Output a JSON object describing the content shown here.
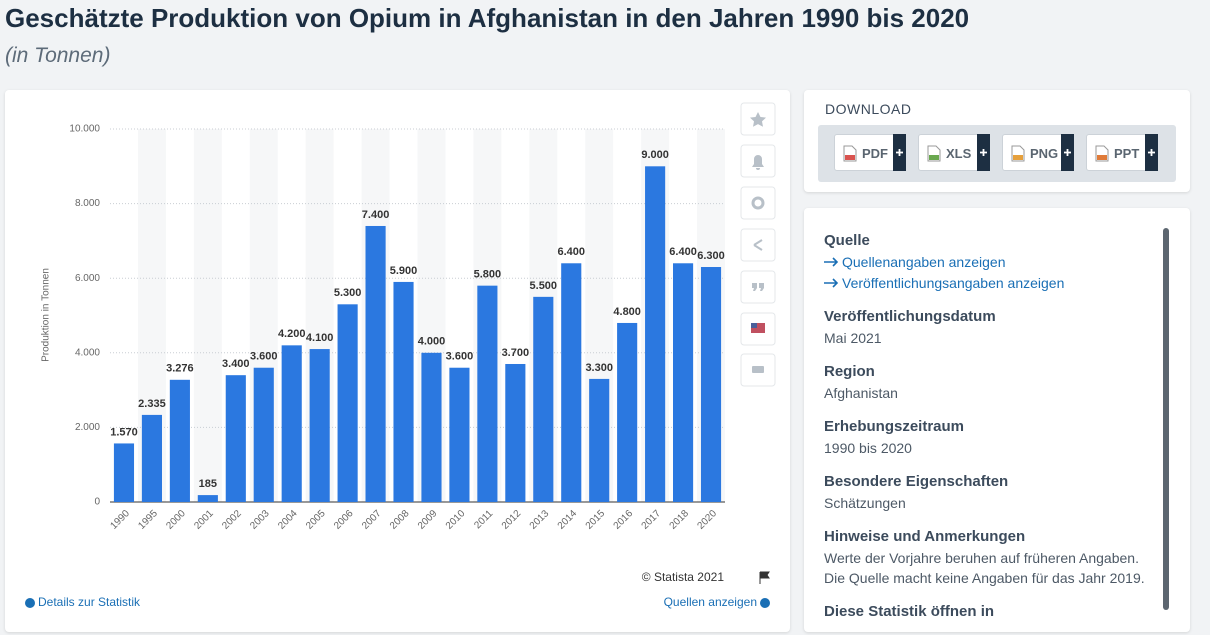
{
  "chart_data": {
    "type": "bar",
    "title": "Geschätzte Produktion von Opium in Afghanistan in den Jahren 1990 bis 2020",
    "subtitle": "(in Tonnen)",
    "y_label": "Produktion in Tonnen",
    "categories": [
      "1990",
      "1995",
      "2000",
      "2001",
      "2002",
      "2003",
      "2004",
      "2005",
      "2006",
      "2007",
      "2008",
      "2009",
      "2010",
      "2011",
      "2012",
      "2013",
      "2014",
      "2015",
      "2016",
      "2017",
      "2018",
      "2020"
    ],
    "values": [
      1570,
      2335,
      3276,
      185,
      3400,
      3600,
      4200,
      4100,
      5300,
      7400,
      5900,
      4000,
      3600,
      5800,
      3700,
      5500,
      6400,
      3300,
      4800,
      9000,
      6400,
      6300
    ],
    "value_labels": [
      "1.570",
      "2.335",
      "3.276",
      "185",
      "3.400",
      "3.600",
      "4.200",
      "4.100",
      "5.300",
      "7.400",
      "5.900",
      "4.000",
      "3.600",
      "5.800",
      "3.700",
      "5.500",
      "6.400",
      "3.300",
      "4.800",
      "9.000",
      "6.400",
      "6.300"
    ],
    "color": "#2b78e0",
    "ylim": [
      0,
      10000
    ],
    "yticks": [
      0,
      {
        "value": 2000,
        "label": "2.000"
      },
      {
        "value": 4000,
        "label": "4.000"
      },
      {
        "value": 6000,
        "label": "6.000"
      },
      {
        "value": 8000,
        "label": "8.000"
      },
      {
        "value": 10000,
        "label": "10.000"
      }
    ],
    "grid": true
  },
  "footer": {
    "credit": "© Statista 2021",
    "details": "Details zur Statistik",
    "sources": "Quellen anzeigen"
  },
  "download": {
    "title": "DOWNLOAD",
    "formats": [
      "PDF",
      "XLS",
      "PNG",
      "PPT"
    ]
  },
  "info": {
    "source_heading": "Quelle",
    "source_links": [
      "Quellenangaben anzeigen",
      "Veröffentlichungsangaben anzeigen"
    ],
    "sections": [
      {
        "heading": "Veröffentlichungsdatum",
        "text": "Mai 2021"
      },
      {
        "heading": "Region",
        "text": "Afghanistan"
      },
      {
        "heading": "Erhebungszeitraum",
        "text": "1990 bis 2020"
      },
      {
        "heading": "Besondere Eigenschaften",
        "text": "Schätzungen"
      },
      {
        "heading": "Hinweise und Anmerkungen",
        "lines": [
          "Werte der Vorjahre beruhen auf früheren Angaben.",
          "Die Quelle macht keine Angaben für das Jahr 2019."
        ]
      }
    ],
    "cutoff": "Diese Statistik öffnen in"
  }
}
